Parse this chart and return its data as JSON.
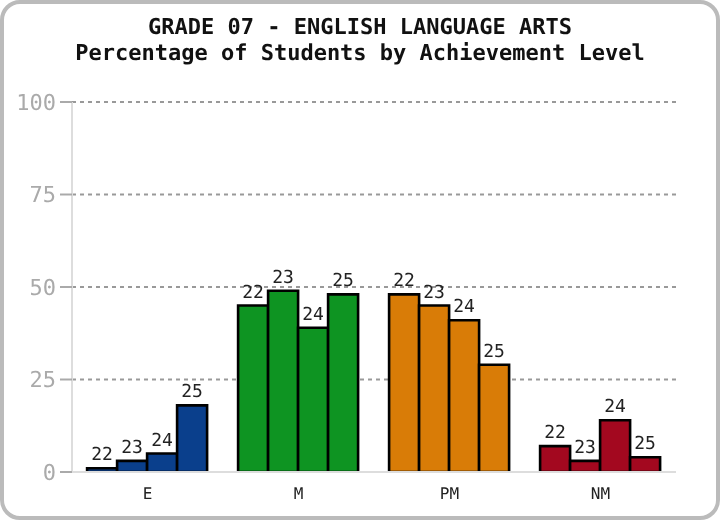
{
  "chart_data": {
    "type": "bar",
    "title": "GRADE 07 - ENGLISH LANGUAGE ARTS",
    "subtitle": "Percentage of Students by Achievement Level",
    "categories": [
      "E",
      "M",
      "PM",
      "NM"
    ],
    "series": [
      {
        "name": "22",
        "colors": [
          "#0a3f8c",
          "#0e9422",
          "#d97c07",
          "#a3081f"
        ],
        "values": [
          1,
          45,
          48,
          7
        ]
      },
      {
        "name": "23",
        "colors": [
          "#0a3f8c",
          "#0e9422",
          "#d97c07",
          "#a3081f"
        ],
        "values": [
          3,
          49,
          45,
          3
        ]
      },
      {
        "name": "24",
        "colors": [
          "#0a3f8c",
          "#0e9422",
          "#d97c07",
          "#a3081f"
        ],
        "values": [
          5,
          39,
          41,
          14
        ]
      },
      {
        "name": "25",
        "colors": [
          "#0a3f8c",
          "#0e9422",
          "#d97c07",
          "#a3081f"
        ],
        "values": [
          18,
          48,
          29,
          4
        ]
      }
    ],
    "ylim": [
      0,
      100
    ],
    "yticks": [
      0,
      25,
      50,
      75,
      100
    ],
    "grid": "y"
  }
}
